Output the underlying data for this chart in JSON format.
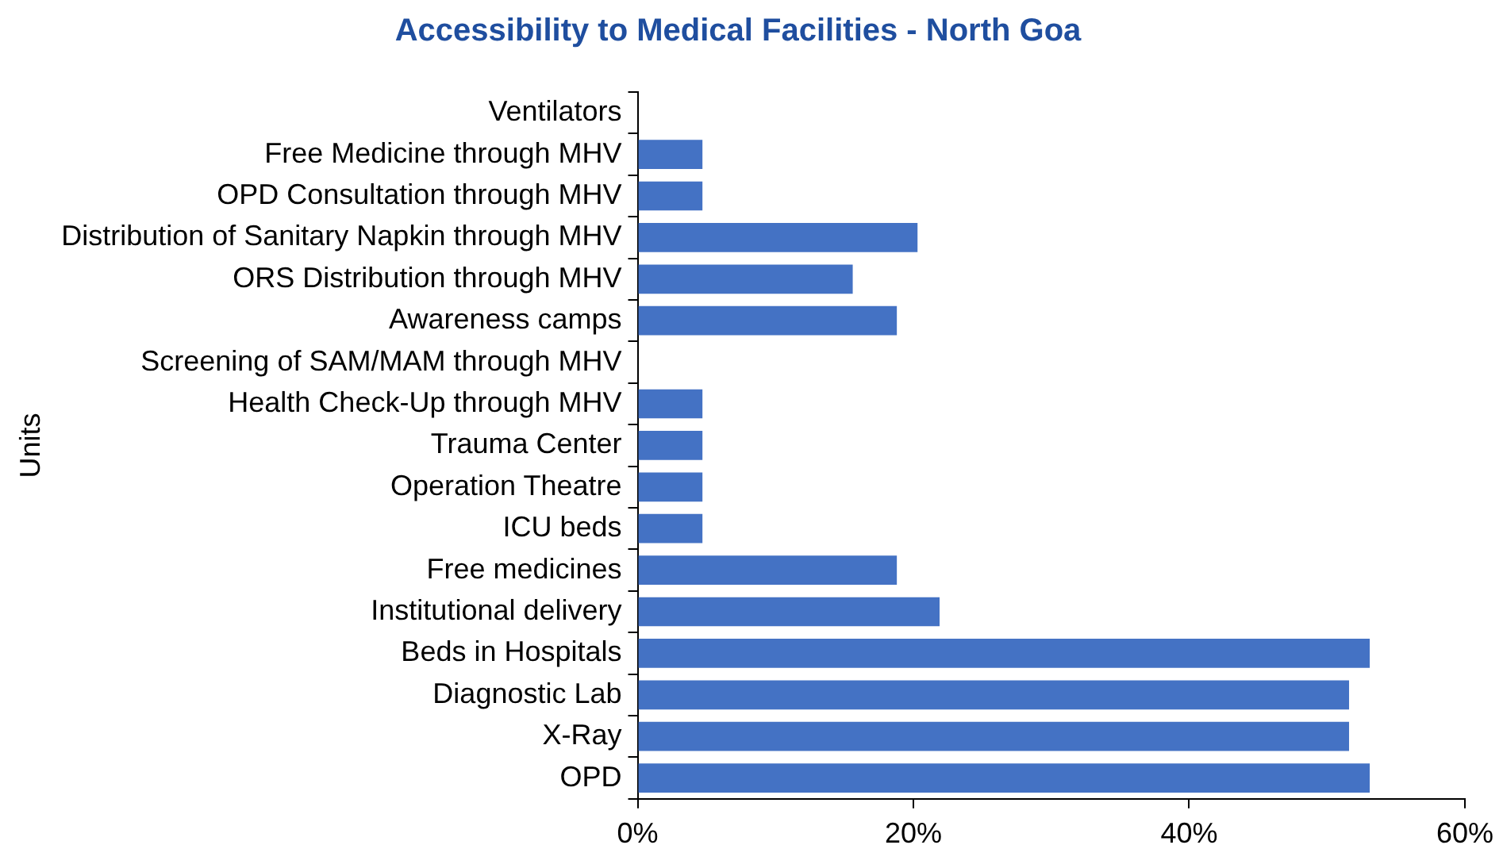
{
  "chart_data": {
    "type": "bar",
    "orientation": "horizontal",
    "title": "Accessibility to Medical Facilities - North Goa",
    "ylabel": "Units",
    "categories": [
      "Ventilators",
      "Free Medicine through MHV",
      "OPD Consultation through MHV",
      "Distribution of Sanitary Napkin through MHV",
      "ORS Distribution through MHV",
      "Awareness camps",
      "Screening of SAM/MAM through MHV",
      "Health Check-Up through MHV",
      "Trauma Center",
      "Operation Theatre",
      "ICU beds",
      "Free medicines",
      "Institutional delivery",
      "Beds in Hospitals",
      "Diagnostic Lab",
      "X-Ray",
      "OPD"
    ],
    "values": [
      0,
      4.7,
      4.7,
      20.3,
      15.6,
      18.8,
      0,
      4.7,
      4.7,
      4.7,
      4.7,
      18.8,
      21.9,
      53.1,
      51.6,
      51.6,
      53.1
    ],
    "color": "#4472c4",
    "xlim": [
      0,
      60
    ],
    "xticks": [
      {
        "value": 0,
        "label": "0%"
      },
      {
        "value": 20,
        "label": "20%"
      },
      {
        "value": 40,
        "label": "40%"
      },
      {
        "value": 60,
        "label": "60%"
      }
    ],
    "grid": false,
    "legend": false
  }
}
